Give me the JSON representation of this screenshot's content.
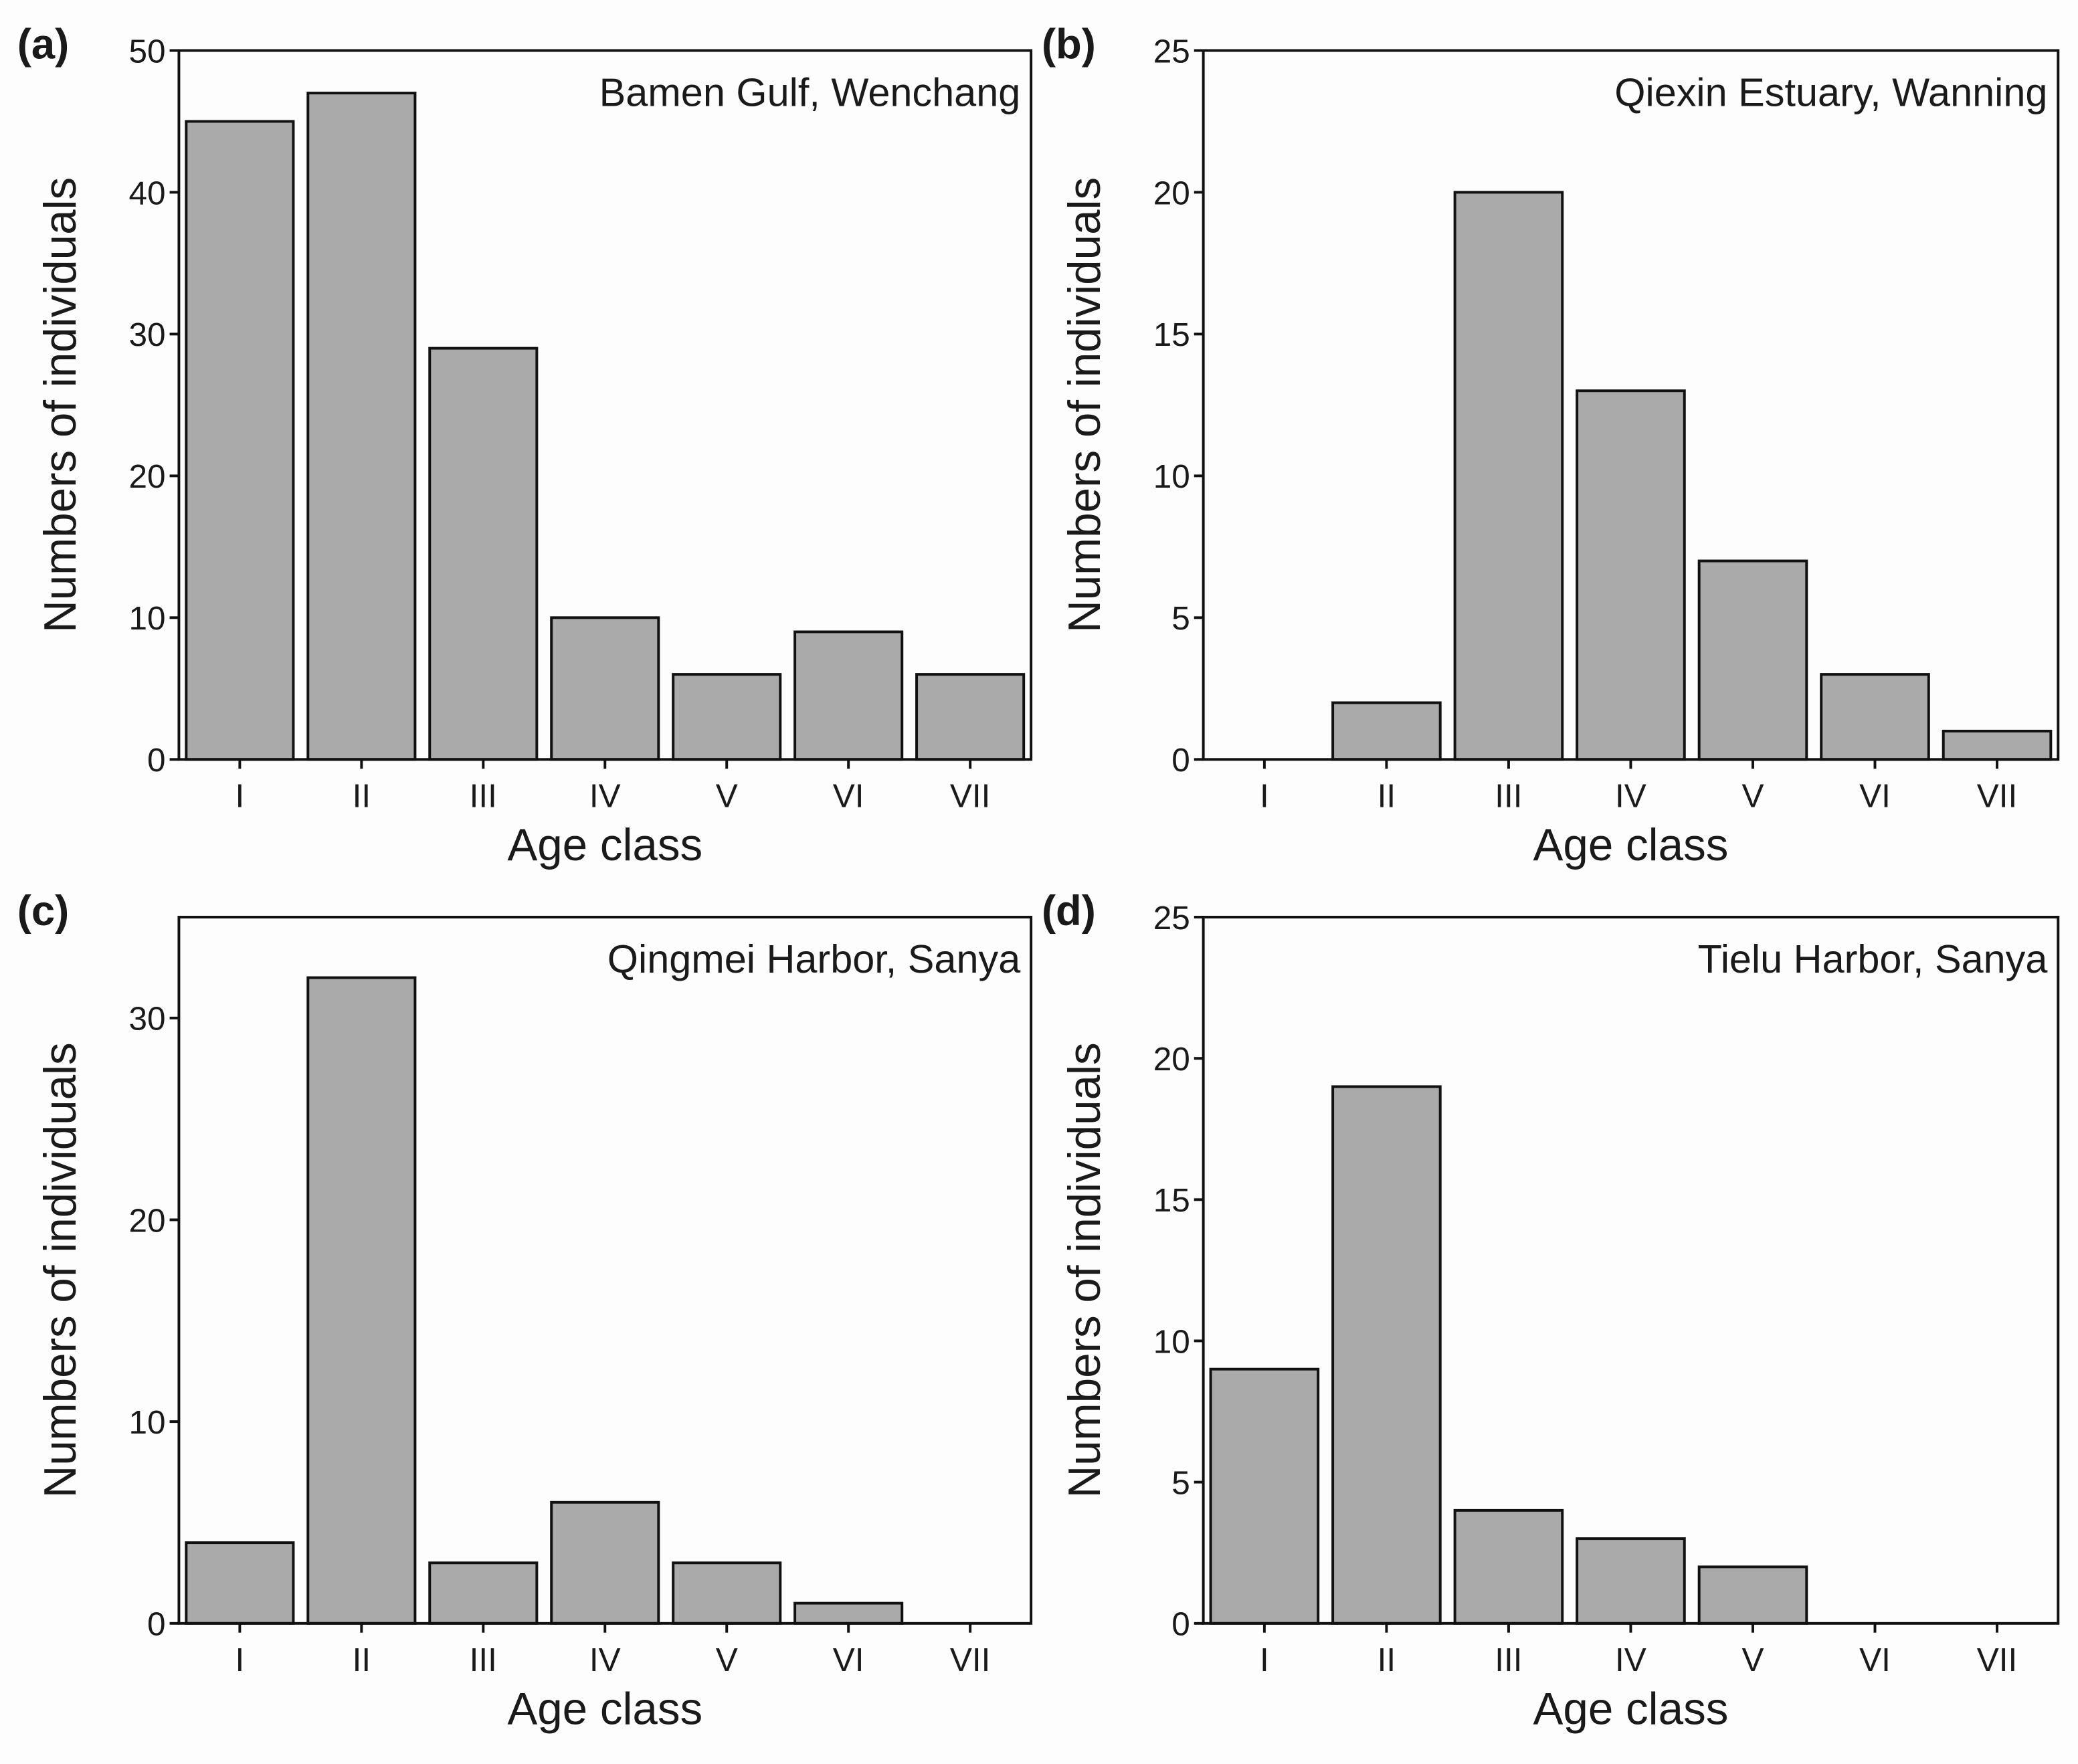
{
  "chart_data": [
    {
      "type": "bar",
      "panel": "(a)",
      "annotation": "Bamen Gulf, Wenchang",
      "xlabel": "Age class",
      "ylabel": "Numbers of individuals",
      "categories": [
        "I",
        "II",
        "III",
        "IV",
        "V",
        "VI",
        "VII"
      ],
      "values": [
        45,
        47,
        29,
        10,
        6,
        9,
        6
      ],
      "color": "#aaaaaa",
      "ylim": [
        0,
        50
      ],
      "yticks": [
        0,
        10,
        20,
        30,
        40,
        50
      ]
    },
    {
      "type": "bar",
      "panel": "(b)",
      "annotation": "Qiexin Estuary, Wanning",
      "xlabel": "Age class",
      "ylabel": "Numbers of individuals",
      "categories": [
        "I",
        "II",
        "III",
        "IV",
        "V",
        "VI",
        "VII"
      ],
      "values": [
        0,
        2,
        20,
        13,
        7,
        3,
        1
      ],
      "color": "#aaaaaa",
      "ylim": [
        0,
        25
      ],
      "yticks": [
        0,
        5,
        10,
        15,
        20,
        25
      ]
    },
    {
      "type": "bar",
      "panel": "(c)",
      "annotation": "Qingmei Harbor, Sanya",
      "xlabel": "Age class",
      "ylabel": "Numbers of individuals",
      "categories": [
        "I",
        "II",
        "III",
        "IV",
        "V",
        "VI",
        "VII"
      ],
      "values": [
        4,
        32,
        3,
        6,
        3,
        1,
        0
      ],
      "color": "#aaaaaa",
      "ylim": [
        0,
        35
      ],
      "yticks": [
        0,
        10,
        20,
        30
      ]
    },
    {
      "type": "bar",
      "panel": "(d)",
      "annotation": "Tielu Harbor, Sanya",
      "xlabel": "Age class",
      "ylabel": "Numbers of individuals",
      "categories": [
        "I",
        "II",
        "III",
        "IV",
        "V",
        "VI",
        "VII"
      ],
      "values": [
        9,
        19,
        4,
        3,
        2,
        0,
        0
      ],
      "color": "#aaaaaa",
      "ylim": [
        0,
        25
      ],
      "yticks": [
        0,
        5,
        10,
        15,
        20,
        25
      ]
    }
  ]
}
